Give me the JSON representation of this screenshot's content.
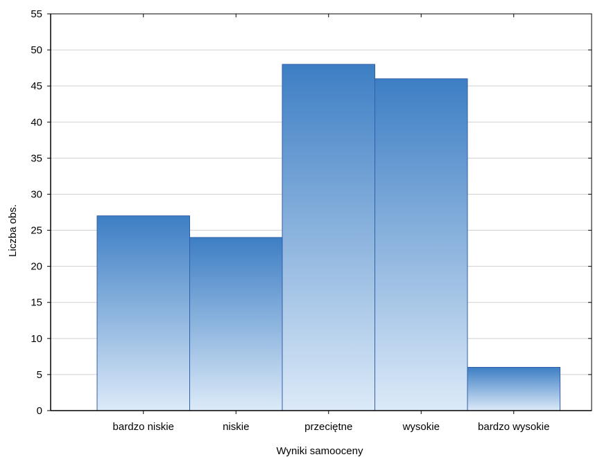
{
  "chart_data": {
    "type": "bar",
    "categories": [
      "bardzo niskie",
      "niskie",
      "przeciętne",
      "wysokie",
      "bardzo wysokie"
    ],
    "values": [
      27,
      24,
      48,
      46,
      6
    ],
    "title": "",
    "xlabel": "Wyniki samooceny",
    "ylabel": "Liczba obs.",
    "ylim": [
      0,
      55
    ],
    "yticks": [
      0,
      5,
      10,
      15,
      20,
      25,
      30,
      35,
      40,
      45,
      50,
      55
    ],
    "grid": true,
    "legend": "none",
    "colors": {
      "bar_top": "#3d7ec4",
      "bar_bottom": "#dceaf8",
      "bar_edge": "#2f5fa8",
      "grid": "#d0d0d0",
      "axis": "#000000"
    }
  }
}
